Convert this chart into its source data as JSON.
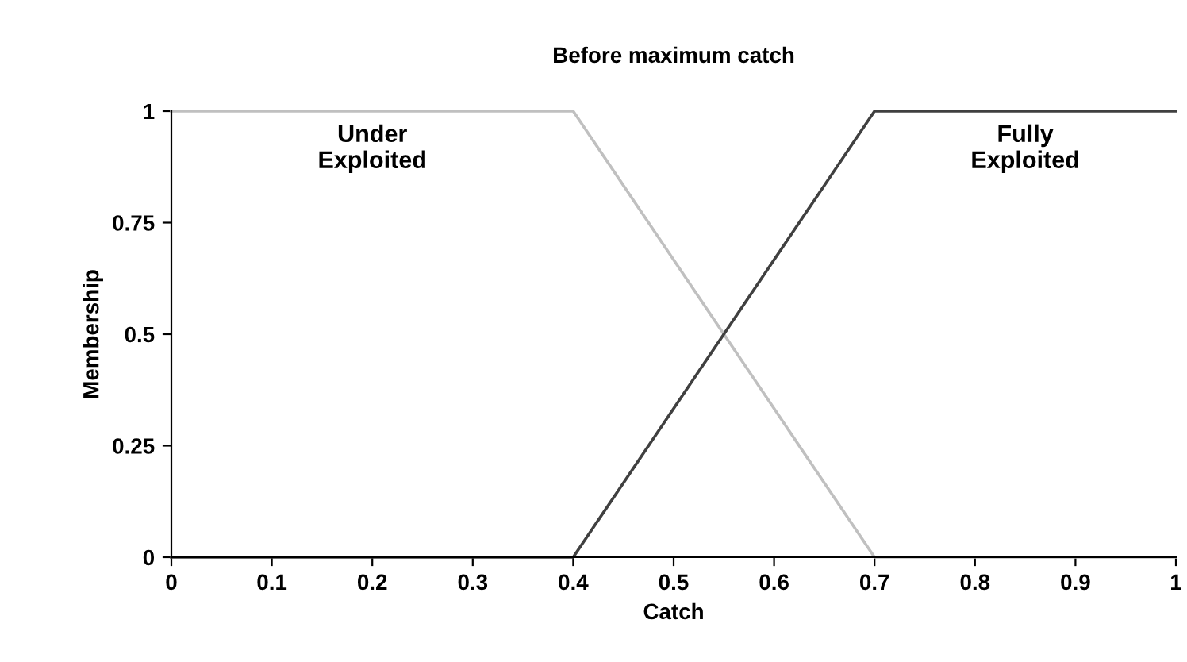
{
  "chart_data": {
    "type": "line",
    "title": "Before maximum catch",
    "xlabel": "Catch",
    "ylabel": "Membership",
    "series": [
      {
        "name": "Under Exploited",
        "color": "#c0c0c0",
        "x": [
          0,
          0.4,
          0.7,
          1
        ],
        "values": [
          1,
          1,
          0,
          0
        ]
      },
      {
        "name": "Fully Exploited",
        "color": "#404040",
        "x": [
          0,
          0.4,
          0.7,
          1
        ],
        "values": [
          0,
          0,
          1,
          1
        ]
      }
    ],
    "xlim": [
      0,
      1
    ],
    "ylim": [
      0,
      1
    ],
    "xticks": [
      0,
      0.1,
      0.2,
      0.3,
      0.4,
      0.5,
      0.6,
      0.7,
      0.8,
      0.9,
      1
    ],
    "yticks": [
      0,
      0.25,
      0.5,
      0.75,
      1
    ],
    "grid": false,
    "legend": false,
    "marker": "none",
    "line_style": "solid"
  }
}
